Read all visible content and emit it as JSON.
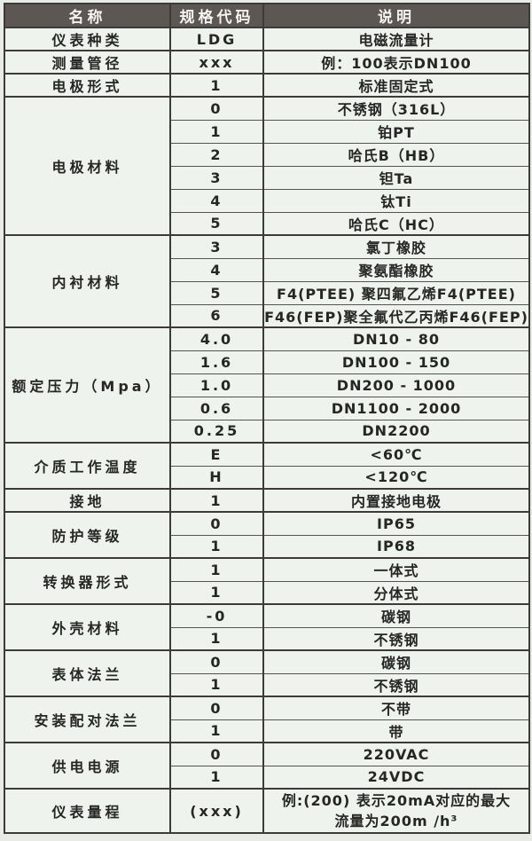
{
  "table": {
    "header": {
      "name_label": "名称",
      "code_label": "规格代码",
      "desc_label": "说明"
    },
    "groups": [
      {
        "name": "仪表种类",
        "rows": [
          {
            "code": "LDG",
            "desc": "电磁流量计"
          }
        ]
      },
      {
        "name": "测量管径",
        "rows": [
          {
            "code": "xxx",
            "desc": "例：100表示DN100"
          }
        ]
      },
      {
        "name": "电极形式",
        "rows": [
          {
            "code": "1",
            "desc": "标准固定式"
          }
        ]
      },
      {
        "name": "电极材料",
        "rows": [
          {
            "code": "0",
            "desc": "不锈钢（316L）"
          },
          {
            "code": "1",
            "desc": "铂PT"
          },
          {
            "code": "2",
            "desc": "哈氏B（HB）"
          },
          {
            "code": "3",
            "desc": "钽Ta"
          },
          {
            "code": "4",
            "desc": "钛Ti"
          },
          {
            "code": "5",
            "desc": "哈氏C（HC）"
          }
        ]
      },
      {
        "name": "内衬材料",
        "rows": [
          {
            "code": "3",
            "desc": "氯丁橡胶"
          },
          {
            "code": "4",
            "desc": "聚氨酯橡胶"
          },
          {
            "code": "5",
            "desc": "F4(PTEE) 聚四氟乙烯F4(PTEE)"
          },
          {
            "code": "6",
            "desc": "F46(FEP)聚全氟代乙丙烯F46(FEP)"
          }
        ]
      },
      {
        "name": "额定压力（Mpa）",
        "rows": [
          {
            "code": "4.0",
            "desc": "DN10 - 80"
          },
          {
            "code": "1.6",
            "desc": "DN100 - 150"
          },
          {
            "code": "1.0",
            "desc": "DN200 - 1000"
          },
          {
            "code": "0.6",
            "desc": "DN1100 - 2000"
          },
          {
            "code": "0.25",
            "desc": "DN2200"
          }
        ]
      },
      {
        "name": "介质工作温度",
        "rows": [
          {
            "code": "E",
            "desc": "<60℃"
          },
          {
            "code": "H",
            "desc": "<120℃"
          }
        ]
      },
      {
        "name": "接地",
        "rows": [
          {
            "code": "1",
            "desc": "内置接地电极"
          }
        ]
      },
      {
        "name": "防护等级",
        "rows": [
          {
            "code": "0",
            "desc": "IP65"
          },
          {
            "code": "1",
            "desc": "IP68"
          }
        ]
      },
      {
        "name": "转换器形式",
        "rows": [
          {
            "code": "1",
            "desc": "一体式"
          },
          {
            "code": "1",
            "desc": "分体式"
          }
        ]
      },
      {
        "name": "外壳材料",
        "rows": [
          {
            "code": "-0",
            "desc": "碳钢"
          },
          {
            "code": "1",
            "desc": "不锈钢"
          }
        ]
      },
      {
        "name": "表体法兰",
        "rows": [
          {
            "code": "0",
            "desc": "碳钢"
          },
          {
            "code": "1",
            "desc": "不锈钢"
          }
        ]
      },
      {
        "name": "安装配对法兰",
        "rows": [
          {
            "code": "0",
            "desc": "不带"
          },
          {
            "code": "1",
            "desc": "带"
          }
        ]
      },
      {
        "name": "供电电源",
        "rows": [
          {
            "code": "0",
            "desc": "220VAC"
          },
          {
            "code": "1",
            "desc": "24VDC"
          }
        ]
      },
      {
        "name": "仪表量程",
        "rows": [
          {
            "code": "(xxx)",
            "desc": [
              "例:(200) 表示20mA对应的最大",
              "流量为200m /h³"
            ],
            "tall": true
          }
        ]
      }
    ],
    "colors": {
      "header_bg": "#5c5752",
      "header_text": "#f4f3f1",
      "body_bg": "#eef3ee",
      "border": "#3c3b39",
      "text": "#262625"
    }
  }
}
